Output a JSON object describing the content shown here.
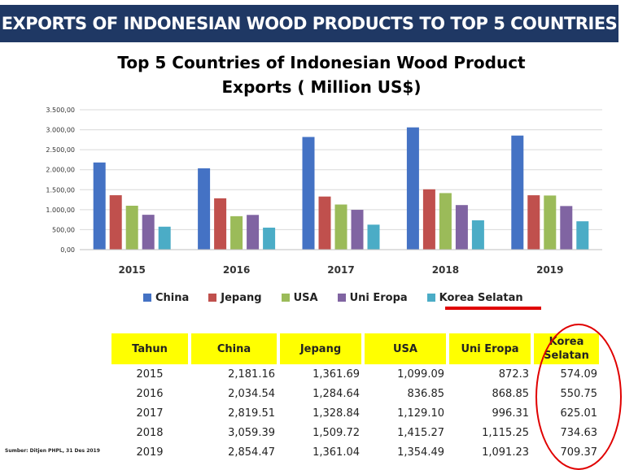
{
  "banner": {
    "title": "EXPORTS OF INDONESIAN WOOD PRODUCTS TO TOP 5 COUNTRIES"
  },
  "chart_data": {
    "type": "bar",
    "title_lines": [
      "Top 5 Countries of  Indonesian Wood  Product",
      "Exports ( Million US$)"
    ],
    "categories": [
      "2015",
      "2016",
      "2017",
      "2018",
      "2019"
    ],
    "series": [
      {
        "name": "China",
        "color": "#4472c4",
        "values": [
          2181.16,
          2034.54,
          2819.51,
          3059.39,
          2854.47
        ]
      },
      {
        "name": "Jepang",
        "color": "#c0504d",
        "values": [
          1361.69,
          1284.64,
          1328.84,
          1509.72,
          1361.04
        ]
      },
      {
        "name": "USA",
        "color": "#9bbb59",
        "values": [
          1099.09,
          836.85,
          1129.1,
          1415.27,
          1354.49
        ]
      },
      {
        "name": "Uni Eropa",
        "color": "#8064a2",
        "values": [
          872.3,
          868.85,
          996.31,
          1115.25,
          1091.23
        ]
      },
      {
        "name": "Korea Selatan",
        "color": "#4bacc6",
        "values": [
          574.09,
          550.75,
          625.01,
          734.63,
          709.37
        ]
      }
    ],
    "ylim": [
      0,
      3500
    ],
    "yticks": [
      "0,00",
      "500,00",
      "1.000,00",
      "1.500,00",
      "2.000,00",
      "2.500,00",
      "3.000,00",
      "3.500,00"
    ],
    "grid": true,
    "legend_position": "bottom"
  },
  "table": {
    "headers": [
      "Tahun",
      "China",
      "Jepang",
      "USA",
      "Uni Eropa",
      "Korea Selatan"
    ],
    "rows": [
      [
        "2015",
        "2,181.16",
        "1,361.69",
        "1,099.09",
        "872.3",
        "574.09"
      ],
      [
        "2016",
        "2,034.54",
        "1,284.64",
        "836.85",
        "868.85",
        "550.75"
      ],
      [
        "2017",
        "2,819.51",
        "1,328.84",
        "1,129.10",
        "996.31",
        "625.01"
      ],
      [
        "2018",
        "3,059.39",
        "1,509.72",
        "1,415.27",
        "1,115.25",
        "734.63"
      ],
      [
        "2019",
        "2,854.47",
        "1,361.04",
        "1,354.49",
        "1,091.23",
        "709.37"
      ]
    ]
  },
  "source": "Sumber: Ditjen PHPL, 31 Des 2019"
}
